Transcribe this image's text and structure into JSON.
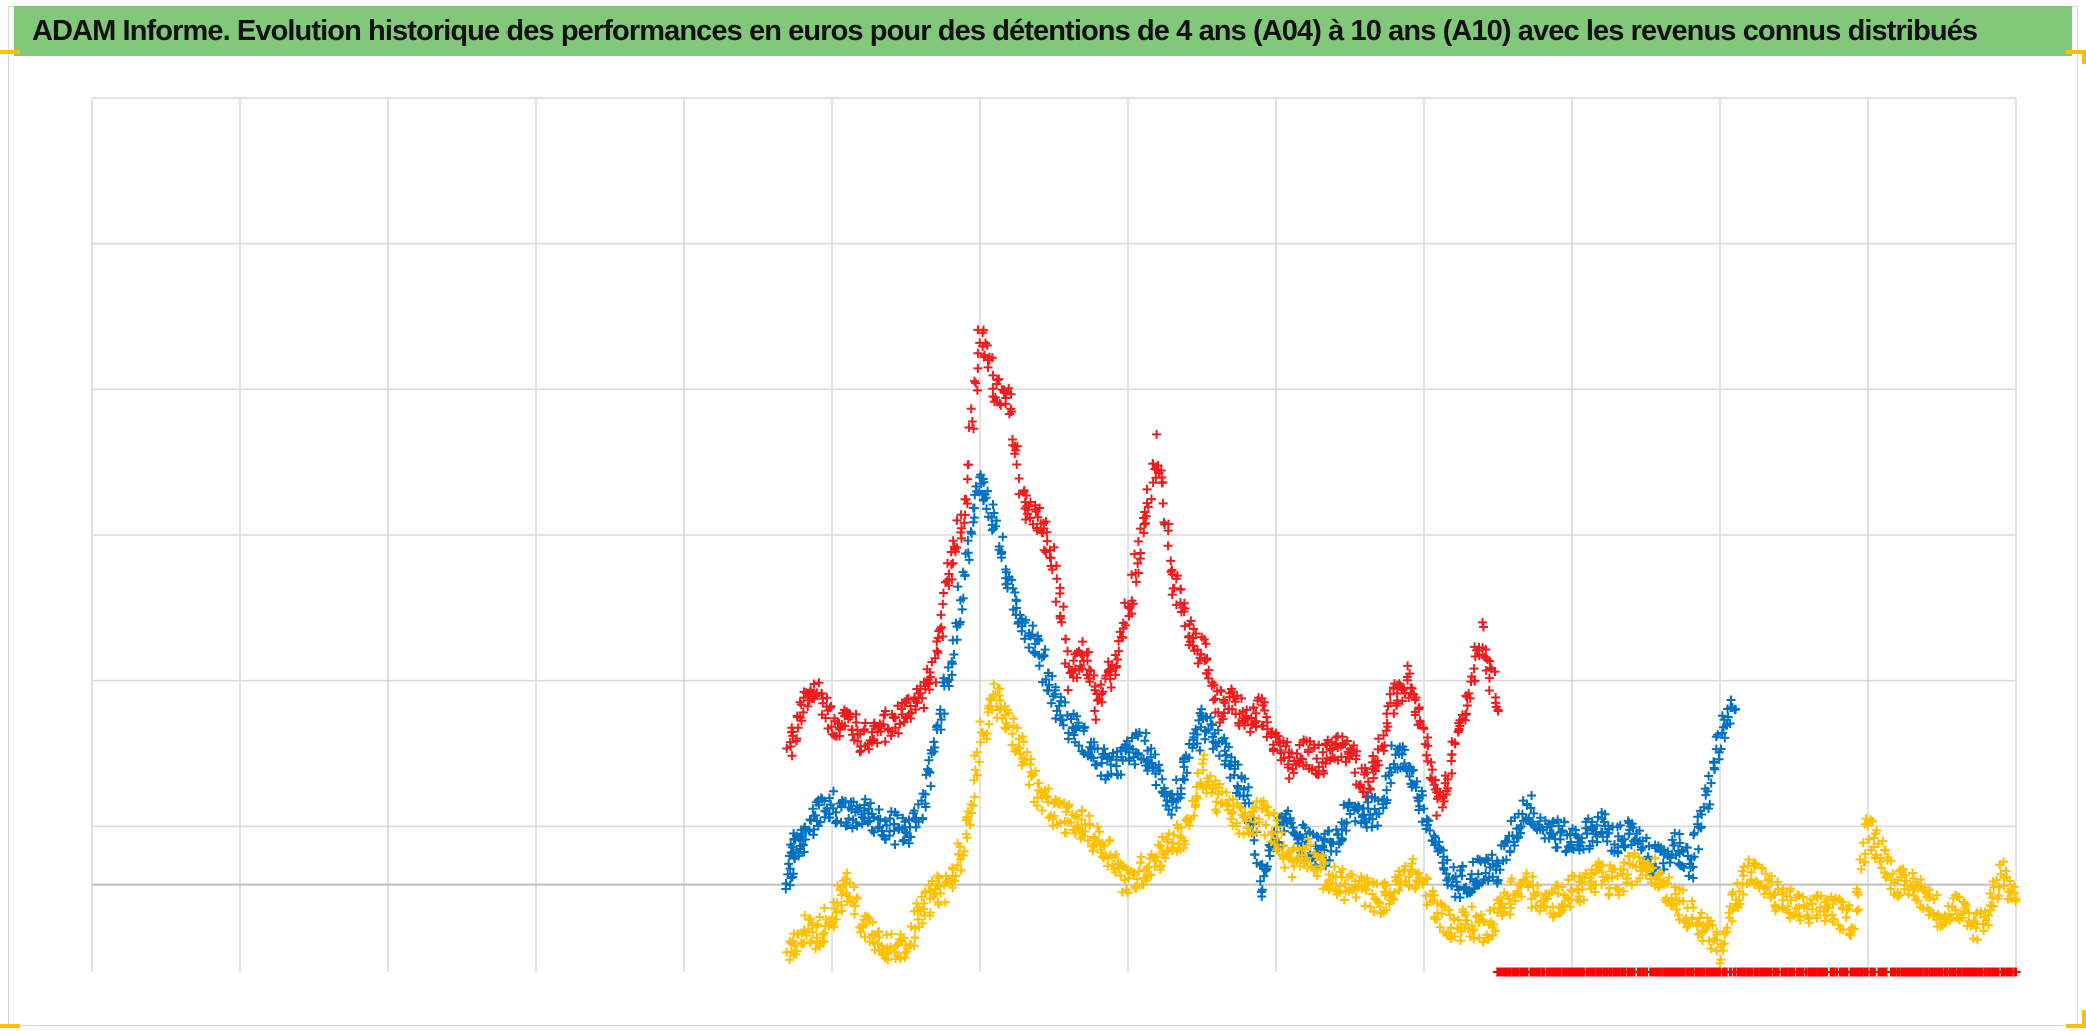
{
  "title": "ADAM Informe. Evolution historique des performances en euros pour des détentions de 4 ans (A04) à 10 ans (A10) avec les revenus connus distribués",
  "colors": {
    "title_bar": "#82c87b",
    "corner_handles": "#ffc000",
    "grid": "#d9d9d9",
    "zero_line": "#bfbfbf"
  },
  "chart_data": {
    "type": "scatter",
    "marker": "plus",
    "title": "ADAM Informe. Evolution historique des performances en euros pour des détentions de 4 ans (A04) à 10 ans (A10) avec les revenus connus distribués",
    "xlabel": "",
    "ylabel": "",
    "tick_labels_visible": false,
    "xlim": [
      0,
      13
    ],
    "ylim": [
      -0.6,
      5.4
    ],
    "grid": true,
    "legend": "none",
    "series": [
      {
        "color": "#ee1c1c",
        "x": [
          4.7,
          4.8,
          4.9,
          5.0,
          5.1,
          5.2,
          5.3,
          5.4,
          5.5,
          5.6,
          5.7,
          5.8,
          5.9,
          6.0,
          6.1,
          6.2,
          6.3,
          6.4,
          6.5,
          6.6,
          6.7,
          6.8,
          6.9,
          7.0,
          7.1,
          7.2,
          7.3,
          7.4,
          7.5,
          7.6,
          7.7,
          7.8,
          7.9,
          8.0,
          8.1,
          8.2,
          8.3,
          8.4,
          8.5,
          8.6,
          8.7,
          8.8,
          8.9,
          9.0,
          9.1,
          9.2,
          9.3,
          9.4,
          9.5
        ],
        "y": [
          0.9,
          1.2,
          1.35,
          1.1,
          1.15,
          1.0,
          1.05,
          1.1,
          1.2,
          1.3,
          1.5,
          2.2,
          2.6,
          3.8,
          3.4,
          3.3,
          2.6,
          2.5,
          2.2,
          1.4,
          1.6,
          1.2,
          1.5,
          1.9,
          2.4,
          3.0,
          2.1,
          1.8,
          1.6,
          1.2,
          1.3,
          1.1,
          1.2,
          1.0,
          0.8,
          0.9,
          0.85,
          0.95,
          0.9,
          0.7,
          0.9,
          1.3,
          1.4,
          1.0,
          0.5,
          0.9,
          1.3,
          1.7,
          1.2
        ]
      },
      {
        "color": "#0070c0",
        "x": [
          4.7,
          4.75,
          4.8,
          4.9,
          5.0,
          5.1,
          5.2,
          5.3,
          5.4,
          5.5,
          5.6,
          5.7,
          5.8,
          5.9,
          6.0,
          6.1,
          6.2,
          6.3,
          6.4,
          6.5,
          6.6,
          6.7,
          6.8,
          6.9,
          7.0,
          7.1,
          7.2,
          7.3,
          7.4,
          7.5,
          7.6,
          7.7,
          7.8,
          7.9,
          8.0,
          8.1,
          8.2,
          8.3,
          8.4,
          8.5,
          8.6,
          8.7,
          8.8,
          8.9,
          9.0,
          9.1,
          9.2,
          9.3,
          9.4,
          9.5,
          9.6,
          9.7,
          9.8,
          9.9,
          10.0,
          10.1,
          10.2,
          10.3,
          10.4,
          10.5,
          10.6,
          10.7,
          10.8,
          10.9,
          11.0,
          11.1
        ],
        "y": [
          0.05,
          0.25,
          0.3,
          0.5,
          0.55,
          0.45,
          0.5,
          0.45,
          0.4,
          0.35,
          0.5,
          1.0,
          1.5,
          2.2,
          2.8,
          2.5,
          2.0,
          1.8,
          1.6,
          1.3,
          1.1,
          1.0,
          0.85,
          0.8,
          0.9,
          0.95,
          0.75,
          0.55,
          0.8,
          1.1,
          1.0,
          0.8,
          0.6,
          0.0,
          0.35,
          0.4,
          0.3,
          0.2,
          0.3,
          0.5,
          0.5,
          0.5,
          0.9,
          0.8,
          0.5,
          0.2,
          0.0,
          0.05,
          0.1,
          0.1,
          0.35,
          0.55,
          0.4,
          0.35,
          0.3,
          0.35,
          0.4,
          0.3,
          0.35,
          0.2,
          0.15,
          0.3,
          0.1,
          0.55,
          1.0,
          1.2
        ]
      },
      {
        "color": "#ffc000",
        "x": [
          4.7,
          4.8,
          4.9,
          5.0,
          5.1,
          5.2,
          5.3,
          5.4,
          5.5,
          5.6,
          5.7,
          5.8,
          5.9,
          6.0,
          6.1,
          6.2,
          6.3,
          6.4,
          6.5,
          6.6,
          6.7,
          6.8,
          6.9,
          7.0,
          7.1,
          7.2,
          7.3,
          7.4,
          7.5,
          7.6,
          7.7,
          7.8,
          7.9,
          8.0,
          8.1,
          8.2,
          8.3,
          8.4,
          8.5,
          8.6,
          8.7,
          8.8,
          8.9,
          9.0,
          9.1,
          9.2,
          9.3,
          9.4,
          9.5,
          9.6,
          9.7,
          9.8,
          9.9,
          10.0,
          10.1,
          10.2,
          10.3,
          10.4,
          10.5,
          10.6,
          10.7,
          10.8,
          10.9,
          11.0,
          11.1,
          11.2,
          11.3,
          11.4,
          11.5,
          11.6,
          11.7,
          11.8,
          11.9,
          12.0,
          12.1,
          12.2,
          12.3,
          12.4,
          12.5,
          12.6,
          12.7,
          12.8,
          12.9,
          13.0
        ],
        "y": [
          -0.5,
          -0.3,
          -0.35,
          -0.2,
          0.0,
          -0.25,
          -0.35,
          -0.45,
          -0.4,
          -0.2,
          -0.05,
          0.0,
          0.3,
          1.0,
          1.3,
          1.1,
          0.9,
          0.6,
          0.5,
          0.45,
          0.4,
          0.3,
          0.2,
          0.0,
          0.1,
          0.2,
          0.3,
          0.35,
          0.8,
          0.6,
          0.5,
          0.4,
          0.5,
          0.35,
          0.15,
          0.25,
          0.1,
          0.0,
          0.0,
          -0.05,
          -0.1,
          -0.05,
          0.1,
          0.0,
          -0.2,
          -0.3,
          -0.25,
          -0.3,
          -0.2,
          -0.05,
          0.0,
          -0.15,
          -0.1,
          -0.05,
          0.0,
          0.05,
          0.0,
          0.1,
          0.15,
          0.05,
          -0.1,
          -0.2,
          -0.3,
          -0.45,
          -0.1,
          0.1,
          0.0,
          -0.1,
          -0.15,
          -0.2,
          -0.15,
          -0.2,
          -0.25,
          0.4,
          0.2,
          0.0,
          0.0,
          -0.1,
          -0.2,
          -0.15,
          -0.3,
          -0.2,
          0.1,
          -0.1
        ]
      },
      {
        "color": "#ff0000",
        "x": [
          9.5,
          9.6,
          9.7,
          9.8,
          9.9,
          10.0,
          10.1,
          10.2,
          10.3,
          10.4,
          10.5,
          10.6,
          10.7,
          10.8,
          10.9,
          11.0,
          11.1,
          11.2,
          11.3,
          11.4,
          11.5,
          11.6,
          11.7,
          11.8,
          11.9,
          12.0,
          12.1,
          12.2,
          12.3,
          12.4,
          12.5,
          12.6,
          12.7,
          12.8,
          12.9,
          13.0
        ],
        "y": [
          -0.6,
          -0.6,
          -0.6,
          -0.6,
          -0.6,
          -0.6,
          -0.6,
          -0.6,
          -0.6,
          -0.6,
          -0.6,
          -0.6,
          -0.6,
          -0.6,
          -0.6,
          -0.6,
          -0.6,
          -0.6,
          -0.6,
          -0.6,
          -0.6,
          -0.6,
          -0.6,
          -0.6,
          -0.6,
          -0.6,
          -0.6,
          -0.6,
          -0.6,
          -0.6,
          -0.6,
          -0.6,
          -0.6,
          -0.6,
          -0.6,
          -0.6
        ]
      }
    ]
  }
}
